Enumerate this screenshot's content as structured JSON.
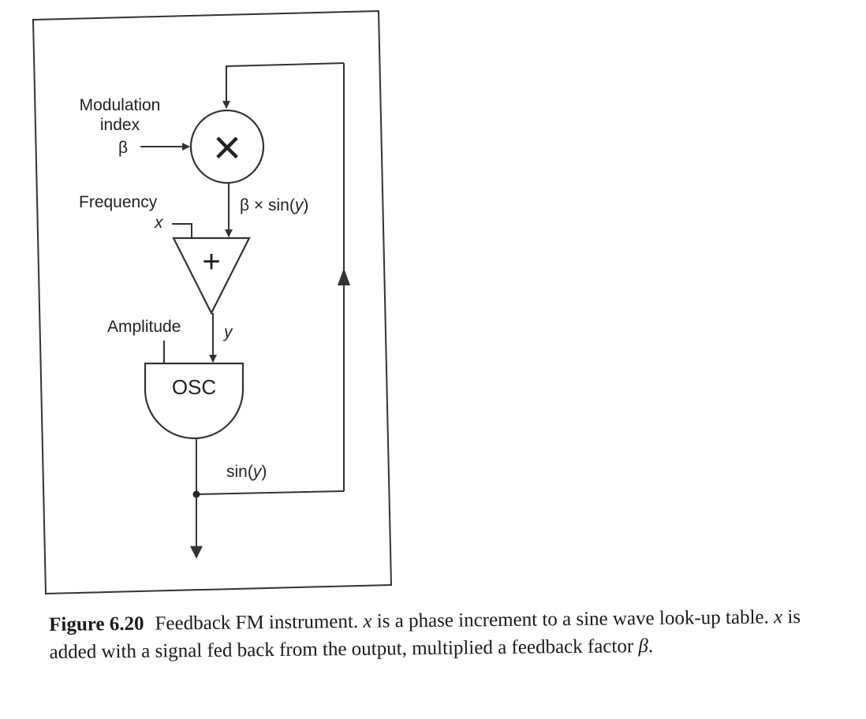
{
  "diagram": {
    "labels": {
      "modulation": "Modulation",
      "index": "index",
      "beta": "β",
      "multiply": "×",
      "product": "β × sin(y)",
      "frequency": "Frequency",
      "x": "x",
      "add": "+",
      "amplitude": "Amplitude",
      "y": "y",
      "osc": "OSC",
      "output": "sin(y)"
    }
  },
  "caption": {
    "figure_label": "Figure 6.20",
    "part1": "Feedback FM instrument. ",
    "var1": "x",
    "part2": " is a phase increment to a sine wave look-up table. ",
    "var2": "x",
    "part3": " is added with a signal fed back from the output, multiplied a feedback factor ",
    "var3": "β",
    "part4": "."
  }
}
